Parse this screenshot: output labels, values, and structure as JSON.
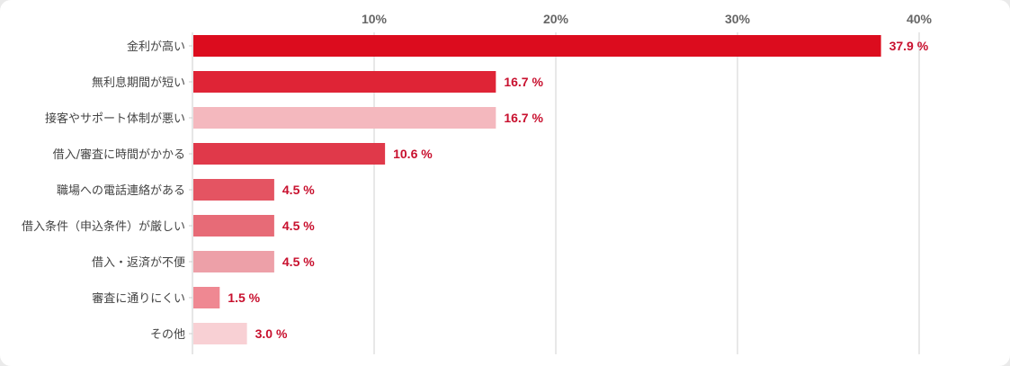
{
  "chart_data": {
    "type": "bar",
    "orientation": "horizontal",
    "categories": [
      "金利が高い",
      "無利息期間が短い",
      "接客やサポート体制が悪い",
      "借入/審査に時間がかかる",
      "職場への電話連絡がある",
      "借入条件（申込条件）が厳しい",
      "借入・返済が不便",
      "審査に通りにくい",
      "その他"
    ],
    "values": [
      37.9,
      16.7,
      16.7,
      10.6,
      4.5,
      4.5,
      4.5,
      1.5,
      3.0
    ],
    "value_labels": [
      "37.9 %",
      "16.7 %",
      "16.7 %",
      "10.6 %",
      "4.5 %",
      "4.5 %",
      "4.5 %",
      "1.5 %",
      "3.0 %"
    ],
    "bar_colors": [
      "#dc0c1e",
      "#df2436",
      "#f4b8be",
      "#e0394a",
      "#e45462",
      "#e76b77",
      "#eda0a8",
      "#ef8892",
      "#f8d0d4"
    ],
    "xticks": [
      10,
      20,
      30,
      40
    ],
    "xtick_labels": [
      "10%",
      "20%",
      "30%",
      "40%"
    ],
    "xlim": [
      0,
      45
    ],
    "xaxis_position": "top",
    "grid": true,
    "title": "",
    "xlabel": "",
    "ylabel": ""
  }
}
